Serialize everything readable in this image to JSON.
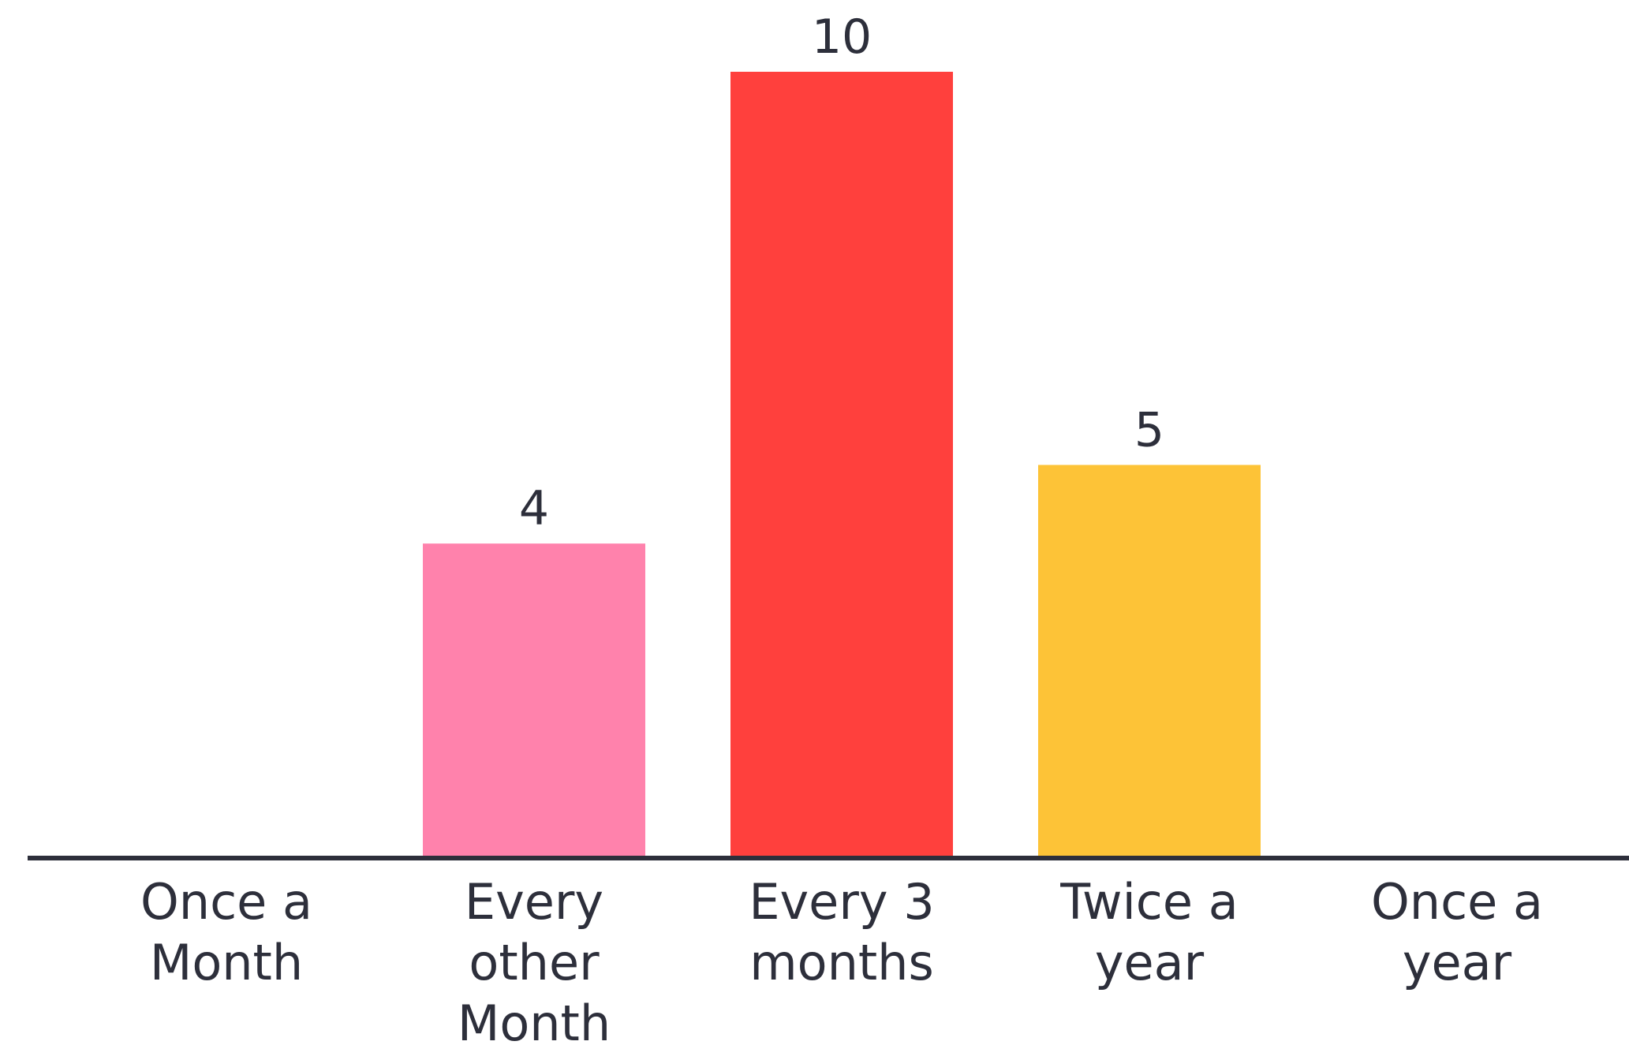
{
  "chart_data": {
    "type": "bar",
    "categories": [
      [
        "Once a",
        "Month"
      ],
      [
        "Every",
        "other",
        "Month"
      ],
      [
        "Every 3",
        "months"
      ],
      [
        "Twice a",
        "year"
      ],
      [
        "Once a",
        "year"
      ]
    ],
    "values": [
      0,
      4,
      10,
      5,
      0
    ],
    "data_labels": [
      "",
      "4",
      "10",
      "5",
      ""
    ],
    "colors": [
      "#ff82ac",
      "#ff82ac",
      "#ff403d",
      "#fdc337",
      "#fdc337"
    ],
    "axis_color": "#2d2f3b",
    "label_color": "#2d2f3b",
    "title": "",
    "xlabel": "",
    "ylabel": "",
    "ylim": [
      0,
      10
    ],
    "grid": false,
    "legend": "none"
  }
}
